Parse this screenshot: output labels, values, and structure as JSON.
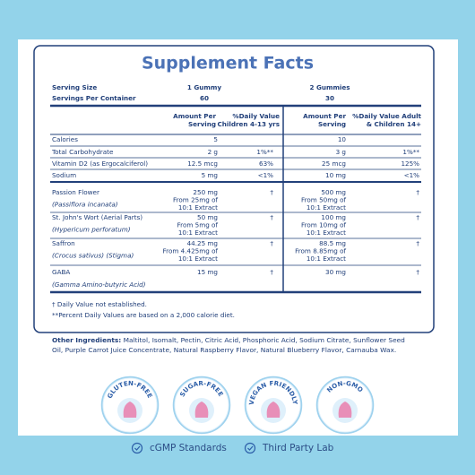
{
  "title": "Supplement Facts",
  "serving_size": {
    "label": "Serving Size",
    "col1": "1 Gummy",
    "col2": "2 Gummies"
  },
  "servings_per_container": {
    "label": "Servings Per Container",
    "col1": 60,
    "col2": 30
  },
  "headers": {
    "amount1": [
      "Amount Per",
      "Serving"
    ],
    "dv1": [
      "%Daily Value",
      "Children 4-13 yrs"
    ],
    "amount2": [
      "Amount Per",
      "Serving"
    ],
    "dv2": [
      "%Daily Value Adult",
      "& Children 14+"
    ]
  },
  "rows": [
    {
      "name": [
        "Calories"
      ],
      "amount1": [
        "5"
      ],
      "amount2": [
        "10"
      ]
    },
    {
      "name": [
        "Total Carbohydrate"
      ],
      "amount1": [
        "2 g"
      ],
      "dv1": "1%**",
      "amount2": [
        "3 g"
      ],
      "dv2": "1%**"
    },
    {
      "name": [
        "Vitamin D2 (as Ergocalciferol)"
      ],
      "amount1": [
        "12.5 mcg"
      ],
      "dv1": "63%",
      "amount2": [
        "25 mcg"
      ],
      "dv2": "125%"
    },
    {
      "name": [
        "Sodium"
      ],
      "amount1": [
        "5 mg"
      ],
      "dv1": "<1%",
      "amount2": [
        "10 mg"
      ],
      "dv2": "<1%"
    },
    {
      "name": [
        "Passion Flower",
        "(Passiflora incanata)"
      ],
      "amount1": [
        "250 mg",
        "From 25mg of",
        "10:1 Extract"
      ],
      "dv1": "†",
      "amount2": [
        "500 mg",
        "From 50mg of",
        "10:1 Extract"
      ],
      "dv2": "†"
    },
    {
      "name": [
        "St. John's Wort (Aerial Parts)",
        "(Hypericum perforatum)"
      ],
      "amount1": [
        "50 mg",
        "From 5mg of",
        "10:1 Extract"
      ],
      "dv1": "†",
      "amount2": [
        "100 mg",
        "From 10mg of",
        "10:1 Extract"
      ],
      "dv2": "†"
    },
    {
      "name": [
        "Saffron",
        "(Crocus sativus) (Stigma)"
      ],
      "amount1": [
        "44.25 mg",
        "From 4.425mg of",
        "10:1 Extract"
      ],
      "dv1": "†",
      "amount2": [
        "88.5 mg",
        "From 8.85mg of",
        "10:1 Extract"
      ],
      "dv2": "†"
    },
    {
      "name": [
        "GABA",
        "(Gamma Amino-butyric Acid)"
      ],
      "amount1": [
        "15 mg"
      ],
      "dv1": "†",
      "amount2": [
        "30 mg"
      ],
      "dv2": "†"
    }
  ],
  "footnotes": [
    "† Daily Value not established.",
    "**Percent Daily Values are based on a 2,000 calorie diet."
  ],
  "other_ingredients": {
    "label": "Other Ingredients:",
    "lines": [
      " Maltitol, Isomalt, Pectin, Citric Acid, Phosphoric Acid, Sodium Citrate, Sunflower Seed",
      "Oil, Purple Carrot Juice Concentrate, Natural Raspberry Flavor, Natural Blueberry Flavor, Carnauba Wax."
    ]
  },
  "badges": [
    "GLUTEN-FREE",
    "SUGAR-FREE",
    "VEGAN FRIENDLY",
    "NON-GMO"
  ],
  "certifications": [
    "cGMP Standards",
    "Third Party Lab"
  ]
}
